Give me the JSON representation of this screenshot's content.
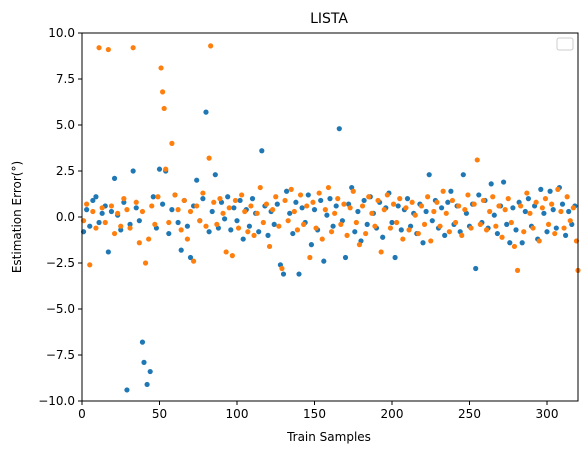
{
  "chart_data": {
    "type": "scatter",
    "title": "LISTA",
    "xlabel": "Train Samples",
    "ylabel": "Estimation Error(°)",
    "xlim": [
      0,
      320
    ],
    "ylim": [
      -10,
      10
    ],
    "xticks": [
      0,
      50,
      100,
      150,
      200,
      250,
      300
    ],
    "yticks": [
      -10.0,
      -7.5,
      -5.0,
      -2.5,
      0.0,
      2.5,
      5.0,
      7.5,
      10.0
    ],
    "xtick_labels": [
      "0",
      "50",
      "100",
      "150",
      "200",
      "250",
      "300"
    ],
    "ytick_labels": [
      "−10.0",
      "−7.5",
      "−5.0",
      "−2.5",
      "0.0",
      "2.5",
      "5.0",
      "7.5",
      "10.0"
    ],
    "grid": false,
    "legend": {
      "placement": "top-right",
      "entries": []
    },
    "series": [
      {
        "color": "#1f77b4",
        "points": [
          [
            1,
            -0.8
          ],
          [
            3,
            0.4
          ],
          [
            5,
            -0.5
          ],
          [
            7,
            0.9
          ],
          [
            9,
            1.1
          ],
          [
            11,
            -0.3
          ],
          [
            13,
            0.2
          ],
          [
            15,
            0.6
          ],
          [
            17,
            -1.9
          ],
          [
            19,
            0.3
          ],
          [
            21,
            2.1
          ],
          [
            23,
            0.1
          ],
          [
            25,
            -0.7
          ],
          [
            27,
            0.8
          ],
          [
            29,
            -9.4
          ],
          [
            31,
            -0.4
          ],
          [
            33,
            2.5
          ],
          [
            35,
            0.5
          ],
          [
            37,
            -0.2
          ],
          [
            39,
            -6.8
          ],
          [
            40,
            -7.9
          ],
          [
            42,
            -9.1
          ],
          [
            44,
            -8.4
          ],
          [
            46,
            1.1
          ],
          [
            48,
            -0.6
          ],
          [
            50,
            2.6
          ],
          [
            52,
            0.7
          ],
          [
            54,
            2.5
          ],
          [
            56,
            -0.9
          ],
          [
            58,
            0.4
          ],
          [
            60,
            1.2
          ],
          [
            62,
            -0.3
          ],
          [
            64,
            -1.8
          ],
          [
            66,
            0.9
          ],
          [
            68,
            -0.5
          ],
          [
            70,
            -2.2
          ],
          [
            72,
            0.6
          ],
          [
            74,
            2.0
          ],
          [
            76,
            -0.2
          ],
          [
            78,
            1.0
          ],
          [
            80,
            5.7
          ],
          [
            82,
            -0.8
          ],
          [
            84,
            0.3
          ],
          [
            86,
            2.3
          ],
          [
            88,
            -0.6
          ],
          [
            90,
            0.8
          ],
          [
            92,
            -0.1
          ],
          [
            94,
            1.1
          ],
          [
            96,
            -0.7
          ],
          [
            98,
            0.5
          ],
          [
            100,
            -0.2
          ],
          [
            102,
            0.9
          ],
          [
            104,
            -1.2
          ],
          [
            106,
            0.4
          ],
          [
            108,
            -0.5
          ],
          [
            110,
            1.0
          ],
          [
            112,
            0.2
          ],
          [
            114,
            -0.8
          ],
          [
            116,
            3.6
          ],
          [
            118,
            0.6
          ],
          [
            120,
            -1.0
          ],
          [
            122,
            0.3
          ],
          [
            124,
            -0.4
          ],
          [
            126,
            0.7
          ],
          [
            128,
            -2.6
          ],
          [
            130,
            -3.1
          ],
          [
            132,
            1.4
          ],
          [
            134,
            0.2
          ],
          [
            136,
            -0.9
          ],
          [
            138,
            0.8
          ],
          [
            140,
            -3.1
          ],
          [
            142,
            0.5
          ],
          [
            144,
            -0.3
          ],
          [
            146,
            1.2
          ],
          [
            148,
            -1.5
          ],
          [
            150,
            0.4
          ],
          [
            152,
            -0.7
          ],
          [
            154,
            0.9
          ],
          [
            156,
            -2.4
          ],
          [
            158,
            0.1
          ],
          [
            160,
            1.0
          ],
          [
            162,
            -0.5
          ],
          [
            164,
            0.6
          ],
          [
            166,
            4.8
          ],
          [
            168,
            -0.2
          ],
          [
            170,
            -2.2
          ],
          [
            172,
            0.7
          ],
          [
            174,
            1.6
          ],
          [
            176,
            -0.8
          ],
          [
            178,
            0.3
          ],
          [
            180,
            -1.3
          ],
          [
            182,
            0.9
          ],
          [
            184,
            -0.4
          ],
          [
            186,
            1.1
          ],
          [
            188,
            0.2
          ],
          [
            190,
            -0.6
          ],
          [
            192,
            0.8
          ],
          [
            194,
            -1.1
          ],
          [
            196,
            0.5
          ],
          [
            198,
            1.3
          ],
          [
            200,
            -0.3
          ],
          [
            202,
            -2.2
          ],
          [
            204,
            0.6
          ],
          [
            206,
            -0.7
          ],
          [
            208,
            0.4
          ],
          [
            210,
            1.0
          ],
          [
            212,
            -0.5
          ],
          [
            214,
            0.2
          ],
          [
            216,
            -0.9
          ],
          [
            218,
            0.7
          ],
          [
            220,
            -1.4
          ],
          [
            222,
            0.3
          ],
          [
            224,
            2.3
          ],
          [
            226,
            -0.2
          ],
          [
            228,
            0.9
          ],
          [
            230,
            -0.6
          ],
          [
            232,
            0.5
          ],
          [
            234,
            -1.0
          ],
          [
            236,
            0.8
          ],
          [
            238,
            1.4
          ],
          [
            240,
            -0.4
          ],
          [
            242,
            0.6
          ],
          [
            244,
            -0.8
          ],
          [
            246,
            2.3
          ],
          [
            248,
            0.2
          ],
          [
            250,
            -0.5
          ],
          [
            252,
            0.7
          ],
          [
            254,
            -2.8
          ],
          [
            256,
            1.2
          ],
          [
            258,
            -0.3
          ],
          [
            260,
            0.9
          ],
          [
            262,
            -0.6
          ],
          [
            264,
            1.8
          ],
          [
            266,
            0.1
          ],
          [
            268,
            -0.9
          ],
          [
            270,
            0.6
          ],
          [
            272,
            1.9
          ],
          [
            274,
            -0.4
          ],
          [
            276,
            -1.4
          ],
          [
            278,
            0.5
          ],
          [
            280,
            -0.7
          ],
          [
            282,
            0.8
          ],
          [
            284,
            -1.4
          ],
          [
            286,
            0.3
          ],
          [
            288,
            1.0
          ],
          [
            290,
            -0.5
          ],
          [
            292,
            0.6
          ],
          [
            294,
            -1.2
          ],
          [
            296,
            1.5
          ],
          [
            298,
            0.2
          ],
          [
            300,
            -0.8
          ],
          [
            302,
            1.4
          ],
          [
            304,
            0.4
          ],
          [
            306,
            -0.6
          ],
          [
            308,
            1.6
          ],
          [
            310,
            0.7
          ],
          [
            312,
            -1.0
          ],
          [
            314,
            0.3
          ],
          [
            316,
            -0.4
          ],
          [
            318,
            0.6
          ]
        ]
      },
      {
        "color": "#ff7f0e",
        "points": [
          [
            1,
            -0.2
          ],
          [
            3,
            0.7
          ],
          [
            5,
            -2.6
          ],
          [
            7,
            0.3
          ],
          [
            9,
            -0.6
          ],
          [
            11,
            9.2
          ],
          [
            13,
            0.5
          ],
          [
            15,
            -0.3
          ],
          [
            17,
            9.1
          ],
          [
            19,
            0.6
          ],
          [
            21,
            -0.9
          ],
          [
            23,
            0.2
          ],
          [
            25,
            -0.5
          ],
          [
            27,
            1.0
          ],
          [
            29,
            0.4
          ],
          [
            31,
            -0.6
          ],
          [
            33,
            9.2
          ],
          [
            35,
            0.8
          ],
          [
            37,
            -1.4
          ],
          [
            39,
            0.3
          ],
          [
            41,
            -2.5
          ],
          [
            43,
            -1.2
          ],
          [
            45,
            0.6
          ],
          [
            47,
            -0.4
          ],
          [
            49,
            1.1
          ],
          [
            51,
            8.1
          ],
          [
            52,
            6.8
          ],
          [
            53,
            5.9
          ],
          [
            54,
            2.6
          ],
          [
            56,
            -0.3
          ],
          [
            58,
            4.0
          ],
          [
            60,
            1.2
          ],
          [
            62,
            0.4
          ],
          [
            64,
            -0.7
          ],
          [
            66,
            0.9
          ],
          [
            68,
            -1.2
          ],
          [
            70,
            0.3
          ],
          [
            72,
            -2.4
          ],
          [
            74,
            0.6
          ],
          [
            76,
            -0.2
          ],
          [
            78,
            1.3
          ],
          [
            80,
            -0.5
          ],
          [
            82,
            3.2
          ],
          [
            83,
            9.3
          ],
          [
            85,
            0.8
          ],
          [
            87,
            -0.4
          ],
          [
            89,
            1.0
          ],
          [
            91,
            0.2
          ],
          [
            93,
            -1.9
          ],
          [
            95,
            0.5
          ],
          [
            97,
            -2.1
          ],
          [
            99,
            0.9
          ],
          [
            101,
            -0.6
          ],
          [
            103,
            1.2
          ],
          [
            105,
            0.3
          ],
          [
            107,
            -0.8
          ],
          [
            109,
            0.6
          ],
          [
            111,
            -1.0
          ],
          [
            113,
            0.2
          ],
          [
            115,
            1.6
          ],
          [
            117,
            -0.3
          ],
          [
            119,
            0.7
          ],
          [
            121,
            -1.6
          ],
          [
            123,
            0.4
          ],
          [
            125,
            1.1
          ],
          [
            127,
            -0.5
          ],
          [
            129,
            -2.8
          ],
          [
            131,
            0.9
          ],
          [
            133,
            -0.2
          ],
          [
            135,
            1.5
          ],
          [
            137,
            0.3
          ],
          [
            139,
            -0.7
          ],
          [
            141,
            1.2
          ],
          [
            143,
            -0.4
          ],
          [
            145,
            0.6
          ],
          [
            147,
            -2.2
          ],
          [
            149,
            0.8
          ],
          [
            151,
            -0.6
          ],
          [
            153,
            1.3
          ],
          [
            155,
            -1.2
          ],
          [
            157,
            0.4
          ],
          [
            159,
            1.6
          ],
          [
            161,
            -0.8
          ],
          [
            163,
            0.2
          ],
          [
            165,
            1.0
          ],
          [
            167,
            -0.4
          ],
          [
            169,
            0.7
          ],
          [
            171,
            -1.0
          ],
          [
            173,
            0.5
          ],
          [
            175,
            1.4
          ],
          [
            177,
            -0.3
          ],
          [
            179,
            -1.5
          ],
          [
            181,
            0.6
          ],
          [
            183,
            -0.9
          ],
          [
            185,
            1.1
          ],
          [
            187,
            0.2
          ],
          [
            189,
            -0.5
          ],
          [
            191,
            0.9
          ],
          [
            193,
            -1.9
          ],
          [
            195,
            0.4
          ],
          [
            197,
            1.2
          ],
          [
            199,
            -0.6
          ],
          [
            201,
            0.7
          ],
          [
            203,
            -0.3
          ],
          [
            205,
            1.0
          ],
          [
            207,
            -1.2
          ],
          [
            209,
            0.5
          ],
          [
            211,
            -0.7
          ],
          [
            213,
            0.8
          ],
          [
            215,
            0.1
          ],
          [
            217,
            -0.9
          ],
          [
            219,
            0.6
          ],
          [
            221,
            -0.4
          ],
          [
            223,
            1.1
          ],
          [
            225,
            -1.3
          ],
          [
            227,
            0.3
          ],
          [
            229,
            0.8
          ],
          [
            231,
            -0.5
          ],
          [
            233,
            1.4
          ],
          [
            235,
            0.2
          ],
          [
            237,
            -0.8
          ],
          [
            239,
            0.9
          ],
          [
            241,
            -0.3
          ],
          [
            243,
            0.6
          ],
          [
            245,
            -1.0
          ],
          [
            247,
            0.4
          ],
          [
            249,
            1.2
          ],
          [
            251,
            -0.6
          ],
          [
            253,
            0.7
          ],
          [
            255,
            3.1
          ],
          [
            257,
            -0.4
          ],
          [
            259,
            0.9
          ],
          [
            261,
            -0.7
          ],
          [
            263,
            0.3
          ],
          [
            265,
            1.1
          ],
          [
            267,
            -0.5
          ],
          [
            269,
            0.6
          ],
          [
            271,
            -1.1
          ],
          [
            273,
            0.4
          ],
          [
            275,
            1.0
          ],
          [
            277,
            -0.3
          ],
          [
            279,
            -1.6
          ],
          [
            281,
            -2.9
          ],
          [
            283,
            0.6
          ],
          [
            285,
            -0.8
          ],
          [
            287,
            1.3
          ],
          [
            289,
            0.2
          ],
          [
            291,
            -0.6
          ],
          [
            293,
            0.8
          ],
          [
            295,
            -1.3
          ],
          [
            297,
            0.5
          ],
          [
            299,
            1.0
          ],
          [
            301,
            -0.4
          ],
          [
            303,
            0.7
          ],
          [
            305,
            -0.9
          ],
          [
            307,
            1.5
          ],
          [
            309,
            0.3
          ],
          [
            311,
            -0.6
          ],
          [
            313,
            1.1
          ],
          [
            315,
            -0.2
          ],
          [
            317,
            0.5
          ],
          [
            319,
            -1.3
          ],
          [
            320,
            -2.9
          ]
        ]
      }
    ]
  }
}
